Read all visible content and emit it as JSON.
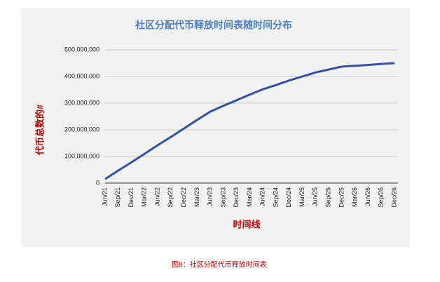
{
  "chart_data": {
    "type": "line",
    "title": "社区分配代币释放时间表随时间分布",
    "x_label": "时间线",
    "y_label": "代币总数的#",
    "caption": "图8：社区分配代币释放时间表",
    "categories": [
      "Jun/21",
      "Sep/21",
      "Dec/21",
      "Mar/22",
      "Jun/22",
      "Sep/22",
      "Dec/22",
      "Mar/23",
      "Jun/23",
      "Sep/23",
      "Dec/23",
      "Mar/24",
      "Jun/24",
      "Sep/24",
      "Dec/24",
      "Mar/25",
      "Jun/25",
      "Sep/25",
      "Dec/25",
      "Mar/26",
      "Jun/26",
      "Sep/26",
      "Dec/26"
    ],
    "series": [
      {
        "name": "代币总数",
        "color": "#2f52a4",
        "values": [
          15000000,
          47000000,
          78000000,
          110000000,
          142000000,
          173000000,
          205000000,
          237000000,
          268000000,
          290000000,
          311000000,
          332000000,
          352000000,
          368000000,
          385000000,
          400000000,
          415000000,
          426000000,
          437000000,
          440000000,
          443000000,
          447000000,
          450000000
        ]
      }
    ],
    "ylim": [
      0,
      500000000
    ],
    "yticks": [
      0,
      {
        "value": 100000000,
        "label": "100,000,000"
      },
      {
        "value": 200000000,
        "label": "200,000,000"
      },
      {
        "value": 300000000,
        "label": "300,000,000"
      },
      {
        "value": 400000000,
        "label": "400,000,000"
      },
      {
        "value": 500000000,
        "label": "500,000,000"
      }
    ],
    "grid": true
  }
}
